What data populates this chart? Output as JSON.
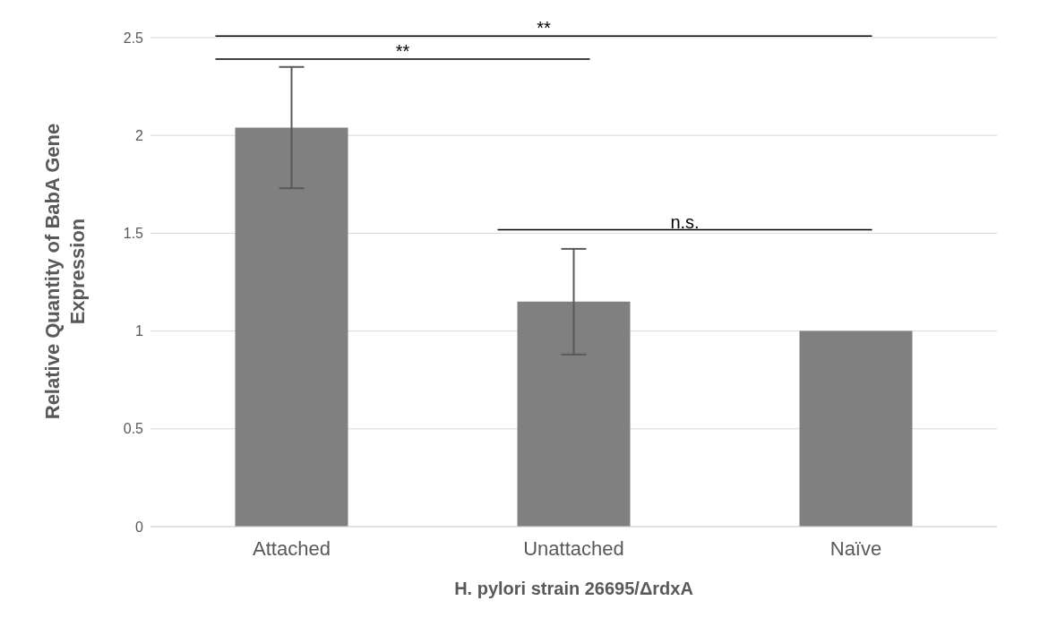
{
  "chart_data": {
    "type": "bar",
    "categories": [
      "Attached",
      "Unattached",
      "Naïve"
    ],
    "values": [
      2.04,
      1.15,
      1.0
    ],
    "errors": [
      0.31,
      0.27,
      0
    ],
    "color": "#808080",
    "ylim": [
      0,
      2.5
    ],
    "yticks": [
      0,
      0.5,
      1,
      1.5,
      2,
      2.5
    ],
    "grid": "y",
    "xlabel": "H. pylori strain 26695/ΔrdxA",
    "ylabel": "Relative Quantity of BabA Gene Expression",
    "annotations": [
      "**",
      "**",
      "n.s."
    ]
  }
}
